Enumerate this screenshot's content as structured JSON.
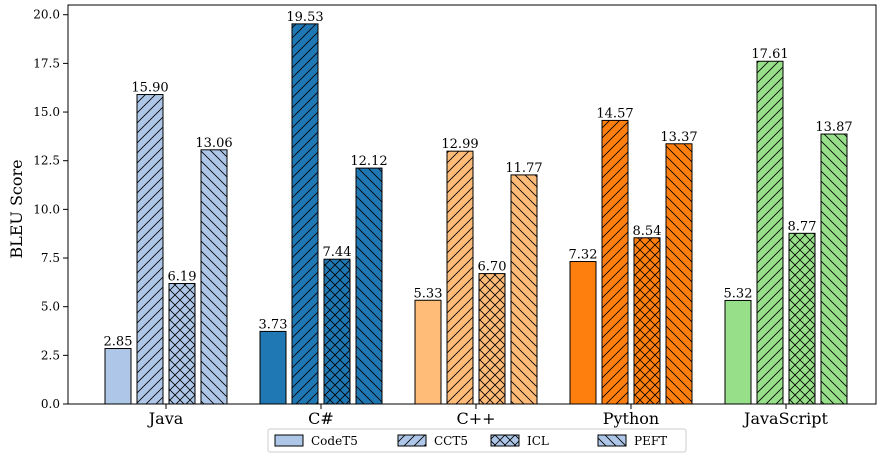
{
  "chart_data": {
    "type": "bar",
    "xlabel": "",
    "ylabel": "BLEU Score",
    "ylim": [
      0,
      20.5
    ],
    "yticks": [
      "0.0",
      "2.5",
      "5.0",
      "7.5",
      "10.0",
      "12.5",
      "15.0",
      "17.5",
      "20.0"
    ],
    "grid": false,
    "legend_position": "bottom-center",
    "categories": [
      "Java",
      "C#",
      "C++",
      "Python",
      "JavaScript"
    ],
    "category_colors": [
      "#aec7e8",
      "#1f77b4",
      "#ffbb78",
      "#ff7f0e",
      "#98df8a"
    ],
    "series": [
      {
        "name": "CodeT5",
        "hatch": "none",
        "values": [
          2.85,
          3.73,
          5.33,
          7.32,
          5.32
        ],
        "labels": [
          "2.85",
          "3.73",
          "5.33",
          "7.32",
          "5.32"
        ]
      },
      {
        "name": "CCT5",
        "hatch": "forward-diagonal",
        "values": [
          15.9,
          19.53,
          12.99,
          14.57,
          17.61
        ],
        "labels": [
          "15.90",
          "19.53",
          "12.99",
          "14.57",
          "17.61"
        ]
      },
      {
        "name": "ICL",
        "hatch": "cross",
        "values": [
          6.19,
          7.44,
          6.7,
          8.54,
          8.77
        ],
        "labels": [
          "6.19",
          "7.44",
          "6.70",
          "8.54",
          "8.77"
        ]
      },
      {
        "name": "PEFT",
        "hatch": "back-diagonal",
        "values": [
          13.06,
          12.12,
          11.77,
          13.37,
          13.87
        ],
        "labels": [
          "13.06",
          "12.12",
          "11.77",
          "13.37",
          "13.87"
        ]
      }
    ]
  }
}
